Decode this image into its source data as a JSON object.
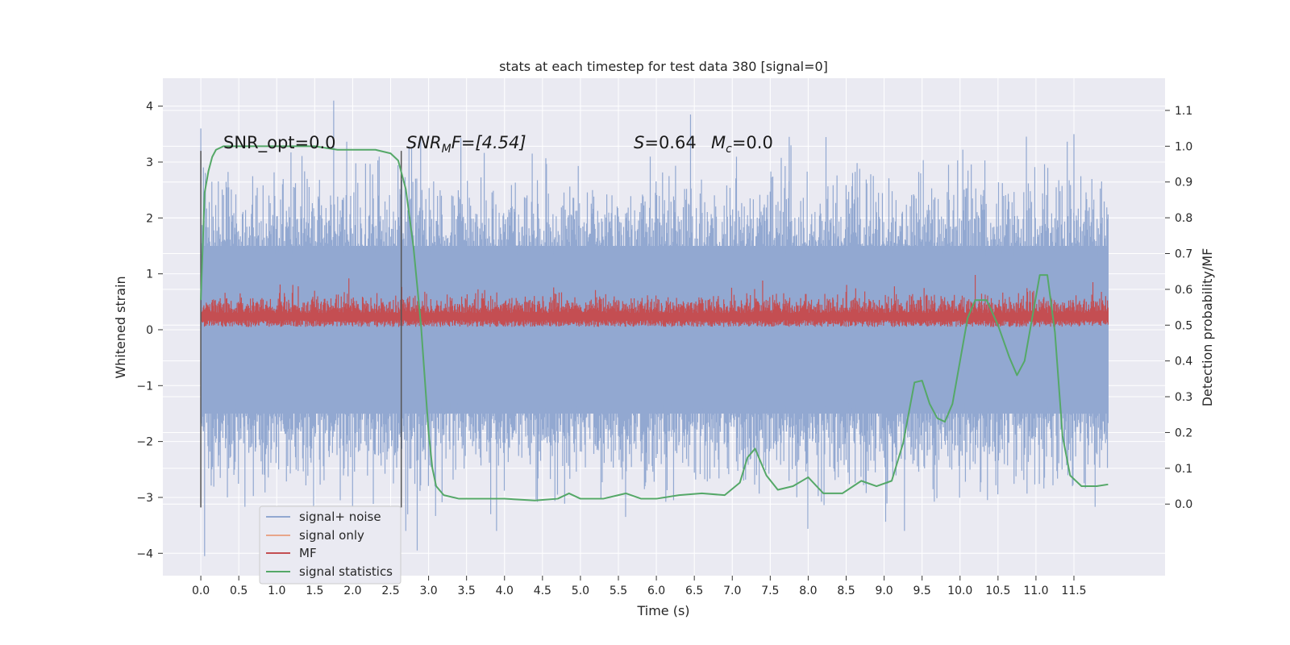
{
  "chart_data": {
    "type": "line",
    "title": "stats at each timestep for test data 380 [signal=0]",
    "xlabel": "Time (s)",
    "ylabel": "Whitened strain",
    "y2label": "Detection probability/MF",
    "xlim": [
      -0.5,
      12.7
    ],
    "ylim": [
      -4.4,
      4.5
    ],
    "y2lim": [
      -0.2,
      1.19
    ],
    "x_ticks": [
      "0.0",
      "0.5",
      "1.0",
      "1.5",
      "2.0",
      "2.5",
      "3.0",
      "3.5",
      "4.0",
      "4.5",
      "5.0",
      "5.5",
      "6.0",
      "6.5",
      "7.0",
      "7.5",
      "8.0",
      "8.5",
      "9.0",
      "9.5",
      "10.0",
      "10.5",
      "11.0",
      "11.5"
    ],
    "y_ticks": [
      "4",
      "3",
      "2",
      "1",
      "0",
      "−1",
      "−2",
      "−3",
      "−4"
    ],
    "y2_ticks": [
      "1.1",
      "1.0",
      "0.9",
      "0.8",
      "0.7",
      "0.6",
      "0.5",
      "0.4",
      "0.3",
      "0.2",
      "0.1",
      "0.0"
    ],
    "grid": true,
    "legend_position": "lower-left",
    "annotations": {
      "snr_opt": "SNR_opt=0.0",
      "snr_mf": "SNR_MF=[4.54]",
      "snr_mf_main": "SNR",
      "snr_mf_sub": "M",
      "snr_mf_rest": "F=[4.54]",
      "stat": "S=0.64",
      "stat_main": "S",
      "stat_rest": "=0.64",
      "mc": "M_c=0.0",
      "mc_main": "M",
      "mc_sub": "c",
      "mc_rest": "=0.0"
    },
    "markers_x": [
      0.0,
      2.64
    ],
    "series": [
      {
        "name": "signal+ noise",
        "color": "#92a8d1",
        "axis": "left",
        "summary": "dense noise, x 0.0 to 12.0, mostly between -2.0 and 2.0, peaks near 4.1 at 1.75 and -4.05 at 0.05",
        "envelope_upper": 1.5,
        "envelope_lower": -1.5
      },
      {
        "name": "signal only",
        "color": "#e8a68a",
        "axis": "left",
        "values": []
      },
      {
        "name": "MF",
        "color": "#c44e52",
        "axis": "left",
        "summary": "dense trace between 0.05 and about 0.6, peaks near 0.95",
        "range": [
          0.05,
          0.6
        ]
      },
      {
        "name": "signal statistics",
        "color": "#55a868",
        "axis": "right",
        "x": [
          0.0,
          0.05,
          0.1,
          0.15,
          0.2,
          0.3,
          0.5,
          1.0,
          1.5,
          1.8,
          2.0,
          2.3,
          2.5,
          2.6,
          2.7,
          2.8,
          2.9,
          2.95,
          3.0,
          3.05,
          3.1,
          3.2,
          3.4,
          3.6,
          4.0,
          4.4,
          4.7,
          4.85,
          5.0,
          5.3,
          5.6,
          5.8,
          6.0,
          6.3,
          6.6,
          6.9,
          7.1,
          7.2,
          7.3,
          7.45,
          7.6,
          7.8,
          8.0,
          8.2,
          8.45,
          8.7,
          8.9,
          9.1,
          9.25,
          9.4,
          9.5,
          9.6,
          9.7,
          9.8,
          9.9,
          10.0,
          10.1,
          10.2,
          10.35,
          10.5,
          10.65,
          10.75,
          10.85,
          10.95,
          11.05,
          11.15,
          11.25,
          11.35,
          11.45,
          11.6,
          11.8,
          11.95
        ],
        "y": [
          0.57,
          0.87,
          0.93,
          0.97,
          0.99,
          1.0,
          1.0,
          1.0,
          1.0,
          0.99,
          0.99,
          0.99,
          0.98,
          0.96,
          0.88,
          0.72,
          0.5,
          0.35,
          0.2,
          0.1,
          0.05,
          0.025,
          0.015,
          0.015,
          0.015,
          0.01,
          0.015,
          0.03,
          0.015,
          0.015,
          0.03,
          0.015,
          0.015,
          0.025,
          0.03,
          0.025,
          0.06,
          0.13,
          0.155,
          0.08,
          0.04,
          0.05,
          0.075,
          0.03,
          0.03,
          0.065,
          0.05,
          0.065,
          0.17,
          0.34,
          0.345,
          0.28,
          0.24,
          0.23,
          0.28,
          0.4,
          0.52,
          0.57,
          0.57,
          0.5,
          0.41,
          0.36,
          0.4,
          0.52,
          0.64,
          0.64,
          0.48,
          0.19,
          0.08,
          0.05,
          0.05,
          0.055
        ]
      }
    ]
  },
  "legend": {
    "items": [
      {
        "label": "signal+ noise",
        "color": "#92a8d1"
      },
      {
        "label": "signal only",
        "color": "#e8a68a"
      },
      {
        "label": "MF",
        "color": "#c44e52"
      },
      {
        "label": "signal statistics",
        "color": "#55a868"
      }
    ]
  },
  "colors": {
    "plot_background": "#eaeaf2",
    "grid": "#ffffff",
    "marker_line": "#555555"
  }
}
